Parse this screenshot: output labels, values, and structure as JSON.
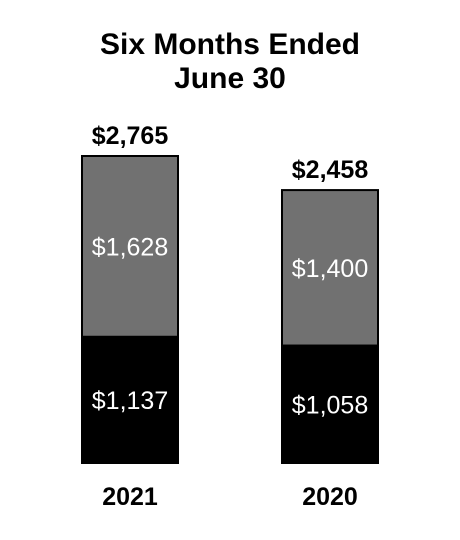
{
  "chart_data": {
    "type": "bar",
    "stacked": true,
    "title_lines": [
      "Six Months Ended",
      "June 30"
    ],
    "xlabel": "",
    "ylabel": "",
    "grid": false,
    "categories": [
      "2021",
      "2020"
    ],
    "series": [
      {
        "values": [
          1137,
          1058
        ],
        "labels": [
          "$1,137",
          "$1,058"
        ],
        "color": "#000000"
      },
      {
        "values": [
          1628,
          1400
        ],
        "labels": [
          "$1,628",
          "$1,400"
        ],
        "color": "#717171"
      }
    ],
    "totals": [
      2765,
      2458
    ],
    "total_labels": [
      "$2,765",
      "$2,458"
    ]
  }
}
